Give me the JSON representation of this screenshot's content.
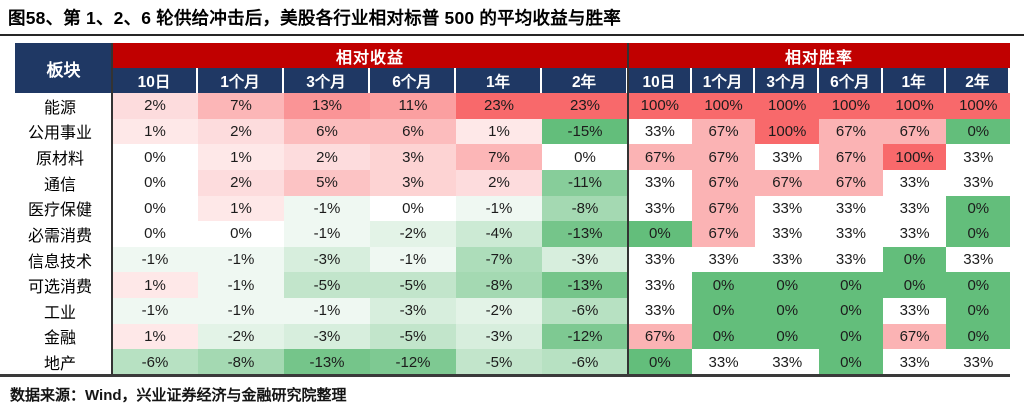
{
  "colors": {
    "header_navy": "#1F3864",
    "band_red": "#C00000",
    "divider": "#333333",
    "text_dark": "#1C1C1C"
  },
  "chart_data": {
    "type": "heatmap",
    "title": "图58、第 1、2、6 轮供给冲击后，美股各行业相对标普 500 的平均收益与胜率",
    "source": "数据来源：Wind，兴业证券经济与金融研究院整理",
    "row_label_header": "板块",
    "groups": [
      "相对收益",
      "相对胜率"
    ],
    "periods": [
      "10日",
      "1个月",
      "3个月",
      "6个月",
      "1年",
      "2年"
    ],
    "rows": [
      "能源",
      "公用事业",
      "原材料",
      "通信",
      "医疗保健",
      "必需消费",
      "信息技术",
      "可选消费",
      "工业",
      "金融",
      "地产"
    ],
    "unit": "%",
    "series": [
      {
        "name": "相对收益",
        "values": [
          [
            2,
            7,
            13,
            11,
            23,
            23
          ],
          [
            1,
            2,
            6,
            6,
            1,
            -15
          ],
          [
            0,
            1,
            2,
            3,
            7,
            0
          ],
          [
            0,
            2,
            5,
            3,
            2,
            -11
          ],
          [
            0,
            1,
            -1,
            0,
            -1,
            -8
          ],
          [
            0,
            0,
            -1,
            -2,
            -4,
            -13
          ],
          [
            -1,
            -1,
            -3,
            -1,
            -7,
            -3
          ],
          [
            1,
            -1,
            -5,
            -5,
            -8,
            -13
          ],
          [
            -1,
            -1,
            -1,
            -3,
            -2,
            -6
          ],
          [
            1,
            -2,
            -3,
            -5,
            -3,
            -12
          ],
          [
            -6,
            -8,
            -13,
            -12,
            -5,
            -6
          ]
        ]
      },
      {
        "name": "相对胜率",
        "values": [
          [
            100,
            100,
            100,
            100,
            100,
            100
          ],
          [
            33,
            67,
            100,
            67,
            67,
            0
          ],
          [
            67,
            67,
            33,
            67,
            100,
            33
          ],
          [
            33,
            67,
            67,
            67,
            33,
            33
          ],
          [
            33,
            67,
            33,
            33,
            33,
            0
          ],
          [
            0,
            67,
            33,
            33,
            33,
            0
          ],
          [
            33,
            33,
            33,
            33,
            0,
            33
          ],
          [
            33,
            0,
            0,
            0,
            0,
            0
          ],
          [
            33,
            0,
            0,
            0,
            33,
            0
          ],
          [
            67,
            0,
            0,
            0,
            67,
            0
          ],
          [
            0,
            33,
            33,
            0,
            33,
            33
          ]
        ]
      }
    ],
    "color_scale": {
      "negative_color": "#63BE7B",
      "mid_color": "#FFFFFF",
      "positive_color": "#F8696B"
    },
    "scales": {
      "相对收益": {
        "min": -15,
        "mid": 0,
        "max": 23,
        "pos_gamma": 0.6,
        "neg_gamma": 0.85
      },
      "相对胜率": {
        "min": 0,
        "mid": 33,
        "max": 100,
        "pos_gamma": 1,
        "neg_gamma": 1
      }
    },
    "legend_position": "none",
    "grid": false
  }
}
